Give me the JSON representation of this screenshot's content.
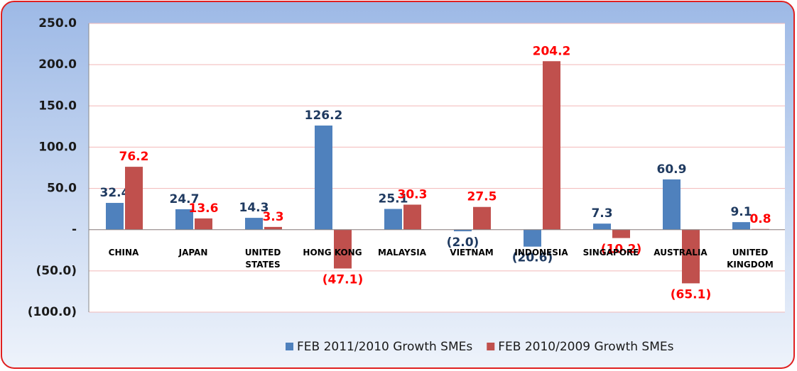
{
  "chart_data": {
    "type": "bar",
    "categories": [
      "CHINA",
      "JAPAN",
      "UNITED STATES",
      "HONG KONG",
      "MALAYSIA",
      "VIETNAM",
      "INDONESIA",
      "SINGAPORE",
      "AUSTRALIA",
      "UNITED KINGDOM"
    ],
    "series": [
      {
        "name": "FEB 2011/2010 Growth SMEs",
        "color": "#4f81bd",
        "label_color": "#1f3a60",
        "values": [
          32.4,
          24.7,
          14.3,
          126.2,
          25.1,
          -2.0,
          -20.6,
          7.3,
          60.9,
          9.1
        ],
        "value_labels": [
          "32.4",
          "24.7",
          "14.3",
          "126.2",
          "25.1",
          "(2.0)",
          "(20.6)",
          "7.3",
          "60.9",
          "9.1"
        ]
      },
      {
        "name": "FEB 2010/2009 Growth SMEs",
        "color": "#c0504d",
        "label_color": "#ff0000",
        "values": [
          76.2,
          13.6,
          3.3,
          -47.1,
          30.3,
          27.5,
          204.2,
          -10.2,
          -65.1,
          0.8
        ],
        "value_labels": [
          "76.2",
          "13.6",
          "3.3",
          "(47.1)",
          "30.3",
          "27.5",
          "204.2",
          "(10.2)",
          "(65.1)",
          "0.8"
        ]
      }
    ],
    "ylim": [
      -100,
      250
    ],
    "yticks": [
      {
        "value": -100,
        "label": "(100.0)"
      },
      {
        "value": -50,
        "label": "(50.0)"
      },
      {
        "value": 0,
        "label": "-"
      },
      {
        "value": 50,
        "label": "50.0"
      },
      {
        "value": 100,
        "label": "100.0"
      },
      {
        "value": 150,
        "label": "150.0"
      },
      {
        "value": 200,
        "label": "200.0"
      },
      {
        "value": 250,
        "label": "250.0"
      }
    ],
    "grid": true
  }
}
